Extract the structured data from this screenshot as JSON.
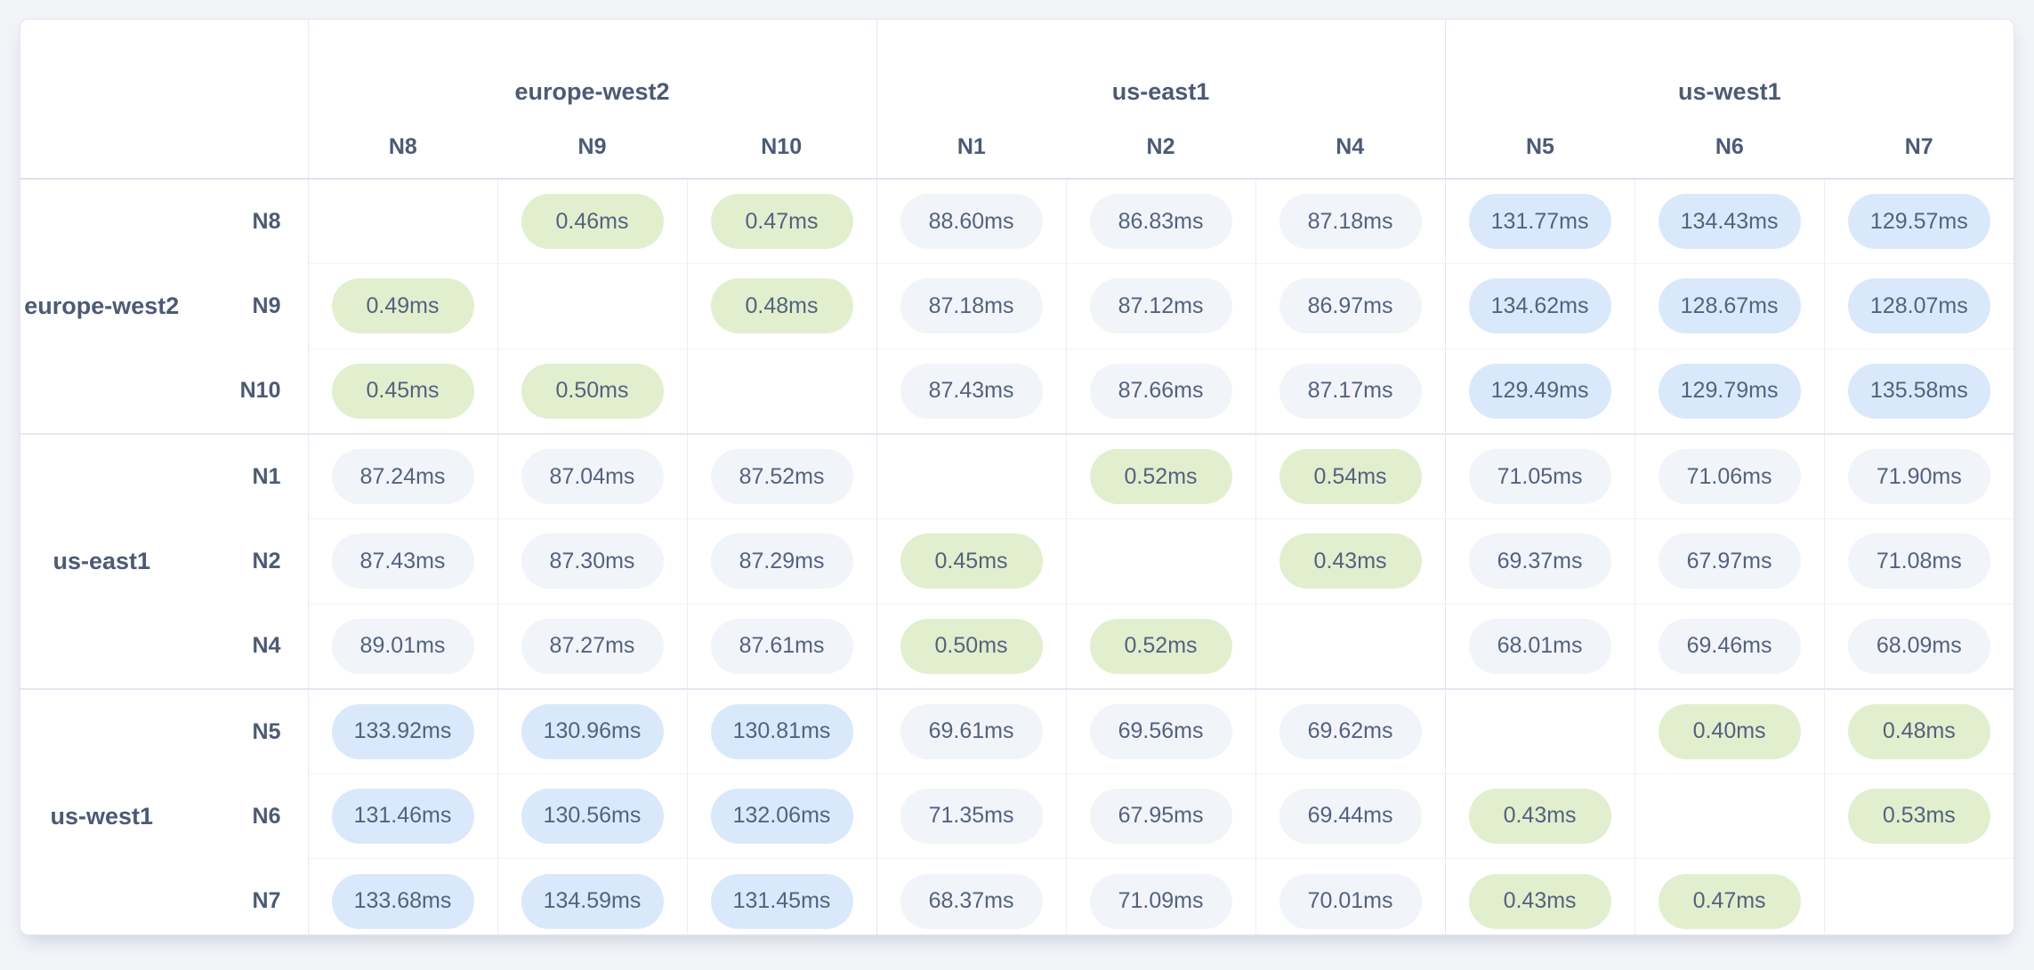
{
  "page": {
    "background": "#f2f4f8",
    "unit": "ms"
  },
  "colors": {
    "fast": "#e2efcf",
    "medium": "#f1f4f9",
    "slow": "#d9e9fb",
    "text": "#54627e",
    "header_text": "#4c5a75"
  },
  "column_groups": [
    {
      "region": "europe-west2",
      "nodes": [
        "N8",
        "N9",
        "N10"
      ]
    },
    {
      "region": "us-east1",
      "nodes": [
        "N1",
        "N2",
        "N4"
      ]
    },
    {
      "region": "us-west1",
      "nodes": [
        "N5",
        "N6",
        "N7"
      ]
    }
  ],
  "row_groups": [
    {
      "region": "europe-west2",
      "rows": [
        {
          "node": "N8",
          "cells": [
            {
              "text": "",
              "tone": "self"
            },
            {
              "text": "0.46ms",
              "tone": "fast"
            },
            {
              "text": "0.47ms",
              "tone": "fast"
            },
            {
              "text": "88.60ms",
              "tone": "medium"
            },
            {
              "text": "86.83ms",
              "tone": "medium"
            },
            {
              "text": "87.18ms",
              "tone": "medium"
            },
            {
              "text": "131.77ms",
              "tone": "slow"
            },
            {
              "text": "134.43ms",
              "tone": "slow"
            },
            {
              "text": "129.57ms",
              "tone": "slow"
            }
          ]
        },
        {
          "node": "N9",
          "cells": [
            {
              "text": "0.49ms",
              "tone": "fast"
            },
            {
              "text": "",
              "tone": "self"
            },
            {
              "text": "0.48ms",
              "tone": "fast"
            },
            {
              "text": "87.18ms",
              "tone": "medium"
            },
            {
              "text": "87.12ms",
              "tone": "medium"
            },
            {
              "text": "86.97ms",
              "tone": "medium"
            },
            {
              "text": "134.62ms",
              "tone": "slow"
            },
            {
              "text": "128.67ms",
              "tone": "slow"
            },
            {
              "text": "128.07ms",
              "tone": "slow"
            }
          ]
        },
        {
          "node": "N10",
          "cells": [
            {
              "text": "0.45ms",
              "tone": "fast"
            },
            {
              "text": "0.50ms",
              "tone": "fast"
            },
            {
              "text": "",
              "tone": "self"
            },
            {
              "text": "87.43ms",
              "tone": "medium"
            },
            {
              "text": "87.66ms",
              "tone": "medium"
            },
            {
              "text": "87.17ms",
              "tone": "medium"
            },
            {
              "text": "129.49ms",
              "tone": "slow"
            },
            {
              "text": "129.79ms",
              "tone": "slow"
            },
            {
              "text": "135.58ms",
              "tone": "slow"
            }
          ]
        }
      ]
    },
    {
      "region": "us-east1",
      "rows": [
        {
          "node": "N1",
          "cells": [
            {
              "text": "87.24ms",
              "tone": "medium"
            },
            {
              "text": "87.04ms",
              "tone": "medium"
            },
            {
              "text": "87.52ms",
              "tone": "medium"
            },
            {
              "text": "",
              "tone": "self"
            },
            {
              "text": "0.52ms",
              "tone": "fast"
            },
            {
              "text": "0.54ms",
              "tone": "fast"
            },
            {
              "text": "71.05ms",
              "tone": "medium"
            },
            {
              "text": "71.06ms",
              "tone": "medium"
            },
            {
              "text": "71.90ms",
              "tone": "medium"
            }
          ]
        },
        {
          "node": "N2",
          "cells": [
            {
              "text": "87.43ms",
              "tone": "medium"
            },
            {
              "text": "87.30ms",
              "tone": "medium"
            },
            {
              "text": "87.29ms",
              "tone": "medium"
            },
            {
              "text": "0.45ms",
              "tone": "fast"
            },
            {
              "text": "",
              "tone": "self"
            },
            {
              "text": "0.43ms",
              "tone": "fast"
            },
            {
              "text": "69.37ms",
              "tone": "medium"
            },
            {
              "text": "67.97ms",
              "tone": "medium"
            },
            {
              "text": "71.08ms",
              "tone": "medium"
            }
          ]
        },
        {
          "node": "N4",
          "cells": [
            {
              "text": "89.01ms",
              "tone": "medium"
            },
            {
              "text": "87.27ms",
              "tone": "medium"
            },
            {
              "text": "87.61ms",
              "tone": "medium"
            },
            {
              "text": "0.50ms",
              "tone": "fast"
            },
            {
              "text": "0.52ms",
              "tone": "fast"
            },
            {
              "text": "",
              "tone": "self"
            },
            {
              "text": "68.01ms",
              "tone": "medium"
            },
            {
              "text": "69.46ms",
              "tone": "medium"
            },
            {
              "text": "68.09ms",
              "tone": "medium"
            }
          ]
        }
      ]
    },
    {
      "region": "us-west1",
      "rows": [
        {
          "node": "N5",
          "cells": [
            {
              "text": "133.92ms",
              "tone": "slow"
            },
            {
              "text": "130.96ms",
              "tone": "slow"
            },
            {
              "text": "130.81ms",
              "tone": "slow"
            },
            {
              "text": "69.61ms",
              "tone": "medium"
            },
            {
              "text": "69.56ms",
              "tone": "medium"
            },
            {
              "text": "69.62ms",
              "tone": "medium"
            },
            {
              "text": "",
              "tone": "self"
            },
            {
              "text": "0.40ms",
              "tone": "fast"
            },
            {
              "text": "0.48ms",
              "tone": "fast"
            }
          ]
        },
        {
          "node": "N6",
          "cells": [
            {
              "text": "131.46ms",
              "tone": "slow"
            },
            {
              "text": "130.56ms",
              "tone": "slow"
            },
            {
              "text": "132.06ms",
              "tone": "slow"
            },
            {
              "text": "71.35ms",
              "tone": "medium"
            },
            {
              "text": "67.95ms",
              "tone": "medium"
            },
            {
              "text": "69.44ms",
              "tone": "medium"
            },
            {
              "text": "0.43ms",
              "tone": "fast"
            },
            {
              "text": "",
              "tone": "self"
            },
            {
              "text": "0.53ms",
              "tone": "fast"
            }
          ]
        },
        {
          "node": "N7",
          "cells": [
            {
              "text": "133.68ms",
              "tone": "slow"
            },
            {
              "text": "134.59ms",
              "tone": "slow"
            },
            {
              "text": "131.45ms",
              "tone": "slow"
            },
            {
              "text": "68.37ms",
              "tone": "medium"
            },
            {
              "text": "71.09ms",
              "tone": "medium"
            },
            {
              "text": "70.01ms",
              "tone": "medium"
            },
            {
              "text": "0.43ms",
              "tone": "fast"
            },
            {
              "text": "0.47ms",
              "tone": "fast"
            },
            {
              "text": "",
              "tone": "self"
            }
          ]
        }
      ]
    }
  ]
}
